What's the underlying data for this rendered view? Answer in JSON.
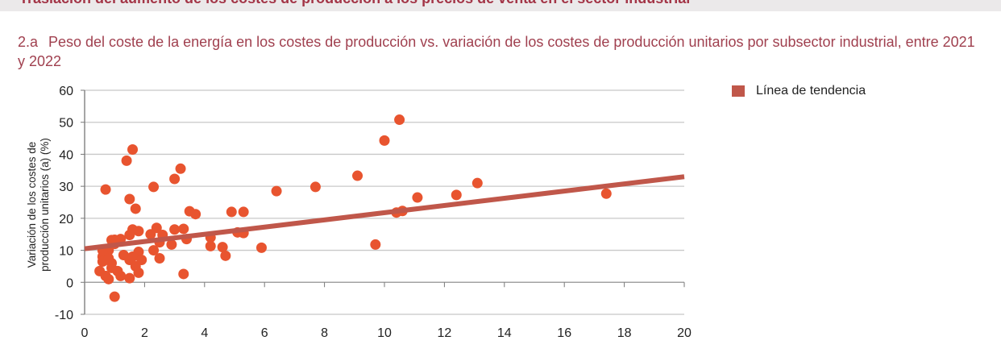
{
  "header": {
    "title": "Traslación del aumento de los costes de producción a los precios de venta en el sector industrial"
  },
  "chart_data": {
    "type": "scatter",
    "number": "2.a",
    "title": "Peso del coste de la energía en los costes de producción vs. variación de los costes de producción unitarios por subsector industrial, entre 2021 y 2022",
    "ylabel": "Variación de los costes de producción unitarios (a) (%)",
    "xlim": [
      0,
      20
    ],
    "ylim": [
      -10,
      60
    ],
    "xticks": [
      0,
      2,
      4,
      6,
      8,
      10,
      12,
      14,
      16,
      18,
      20
    ],
    "yticks": [
      60,
      50,
      40,
      30,
      20,
      10,
      0,
      -10
    ],
    "grid": "horizontal",
    "legend_position": "top-right",
    "colors": {
      "points": "#e8542f",
      "trend": "#c0574a"
    },
    "trendline": {
      "name": "Línea de tendencia",
      "x": [
        0,
        20
      ],
      "y": [
        10.5,
        33
      ]
    },
    "points": [
      [
        0.7,
        29
      ],
      [
        1.4,
        38
      ],
      [
        1.6,
        41.5
      ],
      [
        1.5,
        26
      ],
      [
        1.7,
        23
      ],
      [
        2.3,
        29.8
      ],
      [
        3.0,
        32.3
      ],
      [
        3.2,
        35.5
      ],
      [
        3.5,
        22.2
      ],
      [
        3.7,
        21.3
      ],
      [
        4.9,
        22
      ],
      [
        5.3,
        22
      ],
      [
        6.4,
        28.5
      ],
      [
        7.7,
        29.8
      ],
      [
        9.1,
        33.3
      ],
      [
        10.0,
        44.3
      ],
      [
        10.5,
        50.8
      ],
      [
        9.7,
        11.8
      ],
      [
        10.4,
        21.8
      ],
      [
        10.6,
        22.3
      ],
      [
        11.1,
        26.5
      ],
      [
        12.4,
        27.3
      ],
      [
        13.1,
        31
      ],
      [
        17.4,
        27.7
      ],
      [
        5.9,
        10.8
      ],
      [
        4.7,
        8.3
      ],
      [
        4.6,
        11
      ],
      [
        4.2,
        11.3
      ],
      [
        4.2,
        14
      ],
      [
        5.1,
        15.6
      ],
      [
        5.3,
        15.4
      ],
      [
        3.3,
        2.6
      ],
      [
        1.0,
        -4.5
      ],
      [
        3.4,
        13.5
      ],
      [
        3.3,
        16.7
      ],
      [
        3.0,
        16.5
      ],
      [
        2.9,
        11.8
      ],
      [
        2.5,
        12.5
      ],
      [
        2.6,
        14.8
      ],
      [
        2.4,
        17
      ],
      [
        2.2,
        15
      ],
      [
        2.3,
        10
      ],
      [
        2.5,
        7.5
      ],
      [
        1.8,
        16
      ],
      [
        1.8,
        9.5
      ],
      [
        1.6,
        16.5
      ],
      [
        1.5,
        14.8
      ],
      [
        1.3,
        8.5
      ],
      [
        1.5,
        7
      ],
      [
        1.7,
        5
      ],
      [
        1.8,
        3
      ],
      [
        1.5,
        1.3
      ],
      [
        1.2,
        2
      ],
      [
        0.9,
        4.5
      ],
      [
        1.0,
        13.3
      ],
      [
        0.9,
        13.2
      ],
      [
        0.8,
        10
      ],
      [
        0.6,
        8
      ],
      [
        0.6,
        6.5
      ],
      [
        0.5,
        3.5
      ],
      [
        0.7,
        2
      ],
      [
        0.8,
        1
      ],
      [
        0.9,
        6
      ],
      [
        1.0,
        12
      ],
      [
        1.2,
        13.5
      ],
      [
        0.7,
        9.5
      ],
      [
        0.8,
        7.5
      ],
      [
        1.1,
        3.5
      ],
      [
        0.6,
        10
      ],
      [
        1.6,
        8
      ],
      [
        1.9,
        7
      ]
    ]
  }
}
